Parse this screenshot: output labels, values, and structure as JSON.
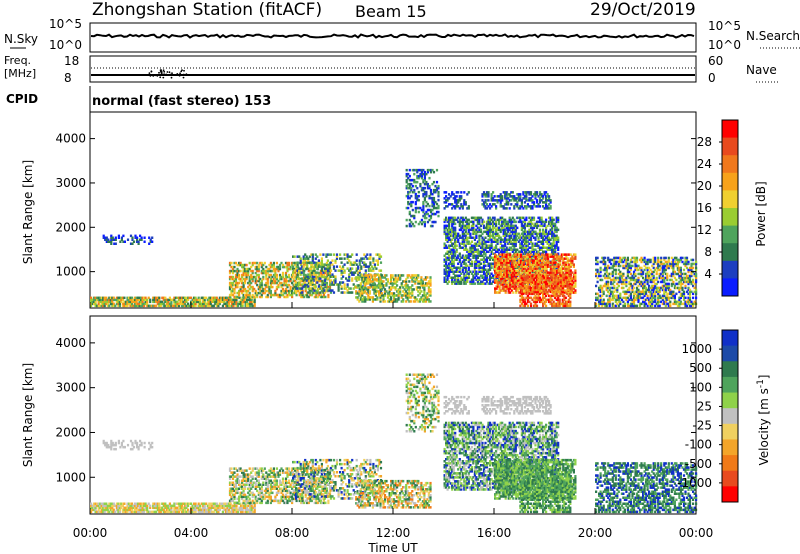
{
  "header": {
    "station": "Zhongshan Station (fitACF)",
    "beam": "Beam 15",
    "date": "29/Oct/2019"
  },
  "noise_panel": {
    "left_label": "N.Sky",
    "left_ticks": [
      "10^5",
      "10^0"
    ],
    "right_ticks": [
      "10^5",
      "10^0"
    ],
    "right_label": "N.Search"
  },
  "freq_panel": {
    "left_label_top": "Freq.",
    "left_label_bottom": "[MHz]",
    "left_ticks": [
      "18",
      "8"
    ],
    "right_ticks": [
      "60",
      "0"
    ],
    "right_label": "Nave"
  },
  "cpid": {
    "label": "CPID",
    "text": "normal (fast stereo) 153"
  },
  "chart_data": [
    {
      "type": "heatmap",
      "panel": "power",
      "xlabel": "Time UT",
      "ylabel": "Slant Range [km]",
      "x_ticks": [
        "00:00",
        "04:00",
        "08:00",
        "12:00",
        "16:00",
        "20:00",
        "00:00"
      ],
      "y_ticks": [
        "1000",
        "2000",
        "3000",
        "4000"
      ],
      "ylim": [
        180,
        4600
      ],
      "colorbar_label": "Power [dB]",
      "colorbar_ticks": [
        "4",
        "8",
        "12",
        "16",
        "20",
        "24",
        "28"
      ],
      "colorbar_colors": [
        "#0a1cff",
        "#1c3ec0",
        "#2f7a4e",
        "#4fa45c",
        "#9acd32",
        "#f0d030",
        "#f7a21a",
        "#f0781c",
        "#e84a1e",
        "#ff0000"
      ]
    },
    {
      "type": "heatmap",
      "panel": "velocity",
      "xlabel": "Time UT",
      "ylabel": "Slant Range [km]",
      "x_ticks": [
        "00:00",
        "04:00",
        "08:00",
        "12:00",
        "16:00",
        "20:00",
        "00:00"
      ],
      "y_ticks": [
        "1000",
        "2000",
        "3000",
        "4000"
      ],
      "ylim": [
        180,
        4600
      ],
      "colorbar_label": "Velocity [m s^-1]",
      "colorbar_ticks": [
        "1000",
        "500",
        "100",
        "25",
        "-25",
        "-100",
        "-500",
        "-1000"
      ],
      "colorbar_colors": [
        "#1030c8",
        "#1c4aa8",
        "#2f7a4e",
        "#4fa45c",
        "#8fd24a",
        "#c0c0c0",
        "#f0d060",
        "#f3a52a",
        "#f07a18",
        "#e84a1e",
        "#ff0000"
      ]
    }
  ],
  "colors": {
    "palette_power": [
      "#0a1cff",
      "#1c3ec0",
      "#2f7a4e",
      "#4fa45c",
      "#9acd32",
      "#f0d030",
      "#f7a21a",
      "#f0781c",
      "#e84a1e",
      "#ff0000"
    ],
    "palette_velocity": [
      "#1030c8",
      "#2f7a4e",
      "#4fa45c",
      "#8fd24a",
      "#c0c0c0",
      "#f0d060",
      "#f3a52a",
      "#f07a18",
      "#e84a1e"
    ]
  }
}
